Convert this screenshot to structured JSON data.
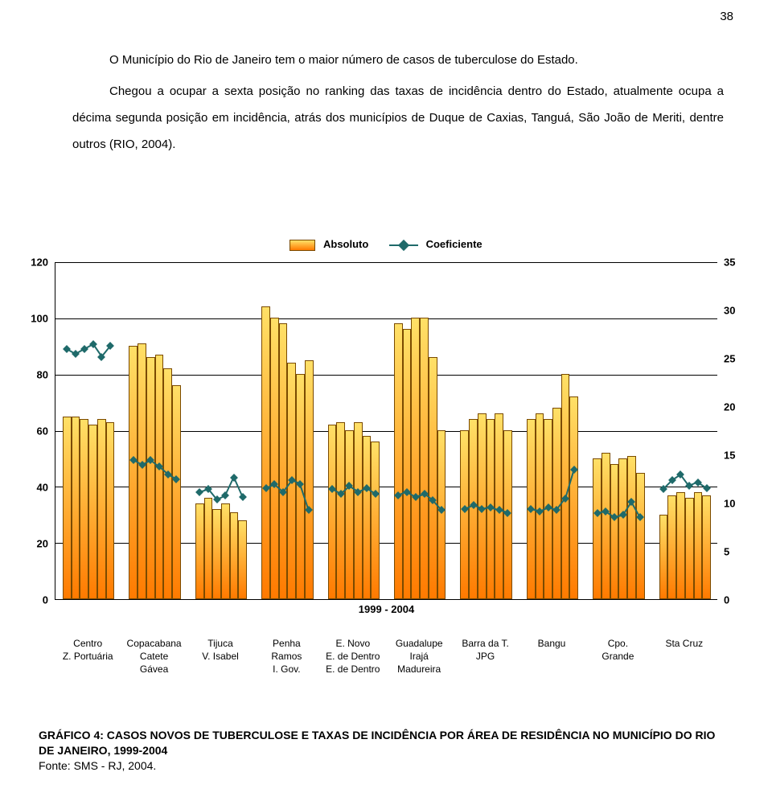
{
  "page_number": "38",
  "intro_paragraphs": [
    "O Município do Rio de Janeiro tem o maior número de casos de tuberculose do Estado.",
    "Chegou a ocupar a sexta posição no ranking das taxas de incidência dentro do Estado, atualmente ocupa a décima segunda posição em incidência, atrás dos municípios de Duque de Caxias, Tanguá, São João de Meriti, dentre outros (RIO, 2004)."
  ],
  "legend": {
    "absoluto": "Absoluto",
    "coeficiente": "Coeficiente"
  },
  "caption": {
    "line1": "GRÁFICO 4: CASOS NOVOS DE TUBERCULOSE E TAXAS DE INCIDÊNCIA POR ÁREA DE RESIDÊNCIA NO MUNICÍPIO DO RIO DE JANEIRO, 1999-2004",
    "line2": "Fonte: SMS - RJ, 2004."
  },
  "chart": {
    "type": "bar+line",
    "period_label": "1999 - 2004",
    "y_left": {
      "min": 0,
      "max": 120,
      "step": 20
    },
    "y_right": {
      "min": 0,
      "max": 35,
      "step": 5
    },
    "grid_color": "#000000",
    "background_color": "#ffffff",
    "bar_border_color": "#7a4a00",
    "bar_gradient": {
      "from": "#ffe067",
      "to": "#ff7a00"
    },
    "line_color": "#1f6a6a",
    "group_gap_ratio": 0.22,
    "groups": [
      {
        "labels": [
          "Centro",
          "Z. Portuária"
        ],
        "bars": [
          65,
          65,
          64,
          62,
          64,
          63
        ],
        "line": [
          26,
          25.5,
          26,
          26.5,
          25.2,
          26.3
        ]
      },
      {
        "labels": [
          "Copacabana",
          "Catete",
          "Gávea"
        ],
        "bars": [
          90,
          91,
          86,
          87,
          82,
          76
        ],
        "line": [
          14.5,
          14,
          14.5,
          13.8,
          13,
          12.5
        ]
      },
      {
        "labels": [
          "Tijuca",
          "V. Isabel"
        ],
        "bars": [
          34,
          36,
          32,
          34,
          31,
          28
        ],
        "line": [
          11.2,
          11.5,
          10.4,
          10.8,
          12.7,
          10.7
        ]
      },
      {
        "labels": [
          "Penha",
          "Ramos",
          "I. Gov."
        ],
        "bars": [
          104,
          100,
          98,
          84,
          80,
          85
        ],
        "line": [
          11.6,
          12,
          11.2,
          12.4,
          12,
          9.3
        ]
      },
      {
        "labels": [
          "E. Novo",
          "E. de Dentro",
          "E. de Dentro"
        ],
        "bars": [
          62,
          63,
          60,
          63,
          58,
          56
        ],
        "line": [
          11.5,
          11,
          11.8,
          11.2,
          11.6,
          11
        ]
      },
      {
        "labels": [
          "Guadalupe",
          "Irajá",
          "Madureira"
        ],
        "bars": [
          98,
          96,
          100,
          100,
          86,
          60
        ],
        "line": [
          10.8,
          11.2,
          10.7,
          11,
          10.3,
          9.3
        ]
      },
      {
        "labels": [
          "Barra da T.",
          "JPG"
        ],
        "bars": [
          60,
          64,
          66,
          64,
          66,
          60
        ],
        "line": [
          9.4,
          9.8,
          9.4,
          9.6,
          9.3,
          9
        ]
      },
      {
        "labels": [
          "Bangu"
        ],
        "bars": [
          64,
          66,
          64,
          68,
          80,
          72
        ],
        "line": [
          9.4,
          9.2,
          9.6,
          9.3,
          10.5,
          13.5
        ]
      },
      {
        "labels": [
          "Cpo.",
          "Grande"
        ],
        "bars": [
          50,
          52,
          48,
          50,
          51,
          45
        ],
        "line": [
          9,
          9.2,
          8.6,
          8.8,
          10.2,
          8.6
        ]
      },
      {
        "labels": [
          "Sta Cruz"
        ],
        "bars": [
          30,
          37,
          38,
          36,
          38,
          37
        ],
        "line": [
          11.5,
          12.4,
          13,
          11.8,
          12.2,
          11.6
        ]
      }
    ]
  }
}
